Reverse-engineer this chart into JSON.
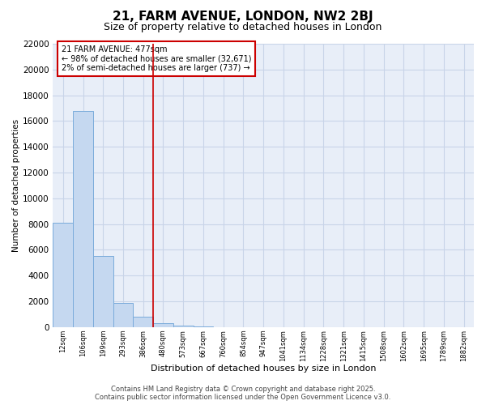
{
  "title": "21, FARM AVENUE, LONDON, NW2 2BJ",
  "subtitle": "Size of property relative to detached houses in London",
  "xlabel": "Distribution of detached houses by size in London",
  "ylabel": "Number of detached properties",
  "categories": [
    "12sqm",
    "106sqm",
    "199sqm",
    "293sqm",
    "386sqm",
    "480sqm",
    "573sqm",
    "667sqm",
    "760sqm",
    "854sqm",
    "947sqm",
    "1041sqm",
    "1134sqm",
    "1228sqm",
    "1321sqm",
    "1415sqm",
    "1508sqm",
    "1602sqm",
    "1695sqm",
    "1789sqm",
    "1882sqm"
  ],
  "values": [
    8100,
    16800,
    5500,
    1900,
    800,
    300,
    100,
    30,
    0,
    0,
    0,
    0,
    0,
    0,
    0,
    0,
    0,
    0,
    0,
    0,
    0
  ],
  "bar_color": "#c5d8f0",
  "bar_edge_color": "#7aabdb",
  "property_line_x": 5,
  "property_line_color": "#cc0000",
  "annotation_text": "21 FARM AVENUE: 477sqm\n← 98% of detached houses are smaller (32,671)\n2% of semi-detached houses are larger (737) →",
  "annotation_box_color": "#cc0000",
  "annotation_bg_color": "#ffffff",
  "ylim": [
    0,
    22000
  ],
  "yticks": [
    0,
    2000,
    4000,
    6000,
    8000,
    10000,
    12000,
    14000,
    16000,
    18000,
    20000,
    22000
  ],
  "footer_text": "Contains HM Land Registry data © Crown copyright and database right 2025.\nContains public sector information licensed under the Open Government Licence v3.0.",
  "grid_color": "#c8d4e8",
  "bg_color": "#ffffff",
  "plot_bg_color": "#e8eef8"
}
